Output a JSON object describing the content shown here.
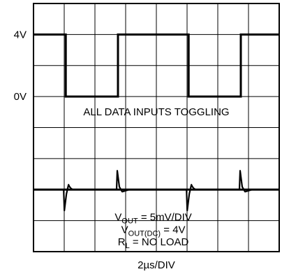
{
  "chart_data": {
    "type": "line",
    "title": "",
    "xlabel": "2µs/DIV",
    "grid": true,
    "divisions": {
      "x": 8,
      "y": 8
    },
    "digital_trace": {
      "levels": {
        "high": "4V",
        "low": "0V"
      },
      "high_div": 1,
      "low_div": 3,
      "transitions_div": [
        1.05,
        2.75,
        5.05,
        6.75
      ],
      "start_state": "high"
    },
    "analog_trace": {
      "baseline_div": 6,
      "glitches": [
        {
          "x_div": 1.05,
          "direction": "down"
        },
        {
          "x_div": 2.75,
          "direction": "up"
        },
        {
          "x_div": 5.05,
          "direction": "down"
        },
        {
          "x_div": 6.75,
          "direction": "up"
        }
      ]
    },
    "annotations": {
      "caption": "ALL DATA INPUTS TOGGLING",
      "line1": {
        "main": "V",
        "sub": "OUT",
        "rest": " = 5mV/DIV"
      },
      "line2": {
        "main": "V",
        "sub": "OUT(DC)",
        "rest": " = 4V"
      },
      "line3": {
        "main": "R",
        "sub": "L",
        "rest": " = NO LOAD"
      }
    }
  }
}
